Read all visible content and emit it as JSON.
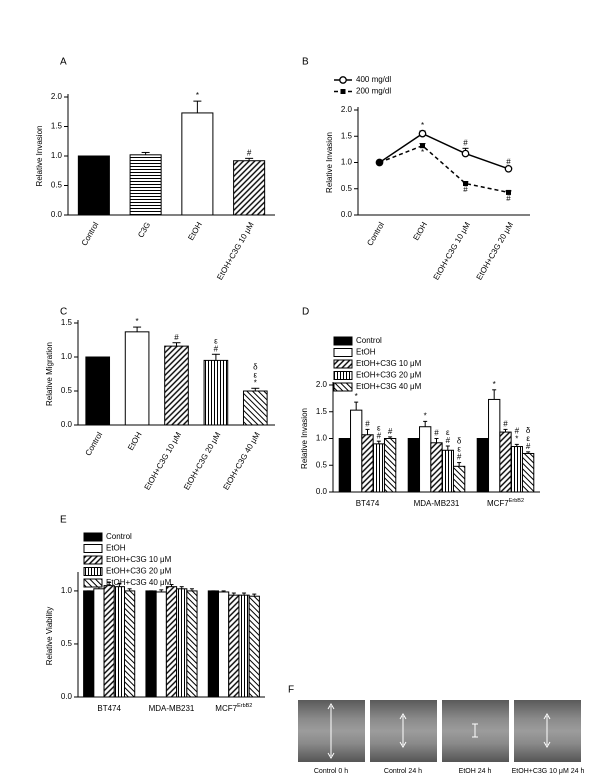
{
  "chart_data": [
    {
      "type": "bar",
      "label": "A",
      "y_label": "Relative Invasion",
      "categories": [
        "Control",
        "C3G",
        "EtOH",
        "EtOH+C3G 10 μM"
      ],
      "values": [
        1.0,
        1.02,
        1.73,
        0.92
      ],
      "errors": [
        0,
        0.04,
        0.2,
        0.04
      ],
      "patterns": [
        "solid",
        "horizontal",
        "none",
        "diagonal"
      ],
      "color": "#000000",
      "annotations": [
        [],
        [],
        [
          "*"
        ],
        [
          "#"
        ]
      ],
      "ylim": [
        0,
        2
      ],
      "yticks": [
        {
          "value": 0,
          "label": "0.0"
        },
        {
          "value": 0.5,
          "label": "0.5"
        },
        {
          "value": 1,
          "label": "1.0"
        },
        {
          "value": 1.5,
          "label": "1.5"
        },
        {
          "value": 2,
          "label": "2.0"
        }
      ]
    },
    {
      "type": "line",
      "label": "B",
      "y_label": "Relative Invasion",
      "categories": [
        "Control",
        "EtOH",
        "EtOH+C3G 10 μM",
        "EtOH+C3G 20 μM"
      ],
      "series": [
        {
          "name": "400 mg/dl",
          "color": "#000000",
          "marker": "open-circle",
          "dash": "solid",
          "values": [
            1.0,
            1.55,
            1.17,
            0.88
          ],
          "errors": [
            0.03,
            0.05,
            0.1,
            0.03
          ],
          "annotations": [
            [],
            [
              "*"
            ],
            [
              "#"
            ],
            [
              "#"
            ]
          ]
        },
        {
          "name": "200 mg/dl",
          "color": "#000000",
          "marker": "filled-square",
          "dash": "dashed",
          "values": [
            1.0,
            1.32,
            0.6,
            0.43
          ],
          "errors": [
            0.02,
            0.04,
            0.03,
            0.03
          ],
          "annotations": [
            [],
            [
              "*"
            ],
            [
              "#"
            ],
            [
              "#"
            ]
          ]
        }
      ],
      "legend": "top-left",
      "ylim": [
        0,
        2
      ],
      "yticks": [
        {
          "value": 0,
          "label": "0.0"
        },
        {
          "value": 0.5,
          "label": "0.5"
        },
        {
          "value": 1,
          "label": "1.0"
        },
        {
          "value": 1.5,
          "label": "1.5"
        },
        {
          "value": 2,
          "label": "2.0"
        }
      ]
    },
    {
      "type": "bar",
      "label": "C",
      "y_label": "Relative Migration",
      "categories": [
        "Control",
        "EtOH",
        "EtOH+C3G 10 μM",
        "EtOH+C3G 20 μM",
        "EtOH+C3G 40 μM"
      ],
      "values": [
        1.0,
        1.37,
        1.16,
        0.95,
        0.5
      ],
      "errors": [
        0,
        0.07,
        0.05,
        0.09,
        0.04
      ],
      "patterns": [
        "solid",
        "none",
        "diagonal",
        "vertical",
        "back-diagonal"
      ],
      "color": "#000000",
      "annotations": [
        [],
        [
          "*"
        ],
        [
          "#"
        ],
        [
          "#",
          "ε"
        ],
        [
          "*",
          "ε",
          "δ"
        ]
      ],
      "ylim": [
        0,
        1.5
      ],
      "yticks": [
        {
          "value": 0,
          "label": "0.0"
        },
        {
          "value": 0.5,
          "label": "0.5"
        },
        {
          "value": 1,
          "label": "1.0"
        },
        {
          "value": 1.5,
          "label": "1.5"
        }
      ]
    },
    {
      "type": "grouped-bar",
      "label": "D",
      "y_label": "Relative Invasion",
      "categories": [
        "BT474",
        "MDA-MB231",
        "MCF7"
      ],
      "category_superscripts": [
        null,
        null,
        "ErbB2"
      ],
      "series": [
        {
          "name": "Control",
          "color": "#000000",
          "pattern": "solid",
          "values": [
            1,
            1,
            1
          ],
          "errors": [
            0,
            0,
            0
          ],
          "annotations": [
            [],
            [],
            []
          ]
        },
        {
          "name": "EtOH",
          "color": "#000000",
          "pattern": "none",
          "values": [
            1.53,
            1.22,
            1.73
          ],
          "errors": [
            0.15,
            0.1,
            0.18
          ],
          "annotations": [
            [
              "*"
            ],
            [
              "*"
            ],
            [
              "*"
            ]
          ]
        },
        {
          "name": "EtOH+C3G 10 μM",
          "color": "#000000",
          "pattern": "diagonal",
          "values": [
            1.07,
            0.92,
            1.12
          ],
          "errors": [
            0.1,
            0.08,
            0.05
          ],
          "annotations": [
            [
              "#"
            ],
            [
              "#"
            ],
            [
              "#"
            ]
          ]
        },
        {
          "name": "EtOH+C3G 20 μM",
          "color": "#000000",
          "pattern": "vertical",
          "values": [
            0.9,
            0.78,
            0.85
          ],
          "errors": [
            0.05,
            0.08,
            0.04
          ],
          "annotations": [
            [
              "#",
              "ε"
            ],
            [
              "#",
              "ε"
            ],
            [
              "*",
              "#"
            ]
          ]
        },
        {
          "name": "EtOH+C3G 40 μM",
          "color": "#000000",
          "pattern": "back-diagonal",
          "values": [
            1.0,
            0.48,
            0.72
          ],
          "errors": [
            0.03,
            0.07,
            0.03
          ],
          "annotations": [
            [
              "#"
            ],
            [
              "#",
              "ε",
              "δ"
            ],
            [
              "#",
              "ε",
              "δ"
            ]
          ]
        }
      ],
      "legend": "top-left",
      "ylim": [
        0,
        2
      ],
      "yticks": [
        {
          "value": 0,
          "label": "0.0"
        },
        {
          "value": 0.5,
          "label": "0.5"
        },
        {
          "value": 1,
          "label": "1.0"
        },
        {
          "value": 1.5,
          "label": "1.5"
        },
        {
          "value": 2,
          "label": "2.0"
        }
      ]
    },
    {
      "type": "grouped-bar",
      "label": "E",
      "y_label": "Relative Viability",
      "categories": [
        "BT474",
        "MDA-MB231",
        "MCF7"
      ],
      "category_superscripts": [
        null,
        null,
        "ErbB2"
      ],
      "series": [
        {
          "name": "Control",
          "color": "#000000",
          "pattern": "solid",
          "values": [
            1,
            1,
            1
          ],
          "errors": [
            0,
            0,
            0
          ]
        },
        {
          "name": "EtOH",
          "color": "#000000",
          "pattern": "none",
          "values": [
            1.02,
            0.99,
            0.99
          ],
          "errors": [
            0.02,
            0.02,
            0.01
          ]
        },
        {
          "name": "EtOH+C3G 10 μM",
          "color": "#000000",
          "pattern": "diagonal",
          "values": [
            1.05,
            1.04,
            0.96
          ],
          "errors": [
            0.03,
            0.02,
            0.02
          ]
        },
        {
          "name": "EtOH+C3G 20 μM",
          "color": "#000000",
          "pattern": "vertical",
          "values": [
            1.04,
            1.02,
            0.96
          ],
          "errors": [
            0.03,
            0.02,
            0.02
          ]
        },
        {
          "name": "EtOH+C3G 40 μM",
          "color": "#000000",
          "pattern": "back-diagonal",
          "values": [
            1.0,
            1.0,
            0.95
          ],
          "errors": [
            0.02,
            0.02,
            0.02
          ]
        }
      ],
      "legend": "top-left",
      "ylim": [
        0,
        1.15
      ],
      "yticks": [
        {
          "value": 0,
          "label": "0.0"
        },
        {
          "value": 0.5,
          "label": "0.5"
        },
        {
          "value": 1,
          "label": "1.0"
        }
      ]
    }
  ],
  "figure_f": {
    "label": "F",
    "captions": [
      "Control 0 h",
      "Control 24 h",
      "EtOH 24 h",
      "EtOH+C3G 10 μM 24 h"
    ]
  }
}
